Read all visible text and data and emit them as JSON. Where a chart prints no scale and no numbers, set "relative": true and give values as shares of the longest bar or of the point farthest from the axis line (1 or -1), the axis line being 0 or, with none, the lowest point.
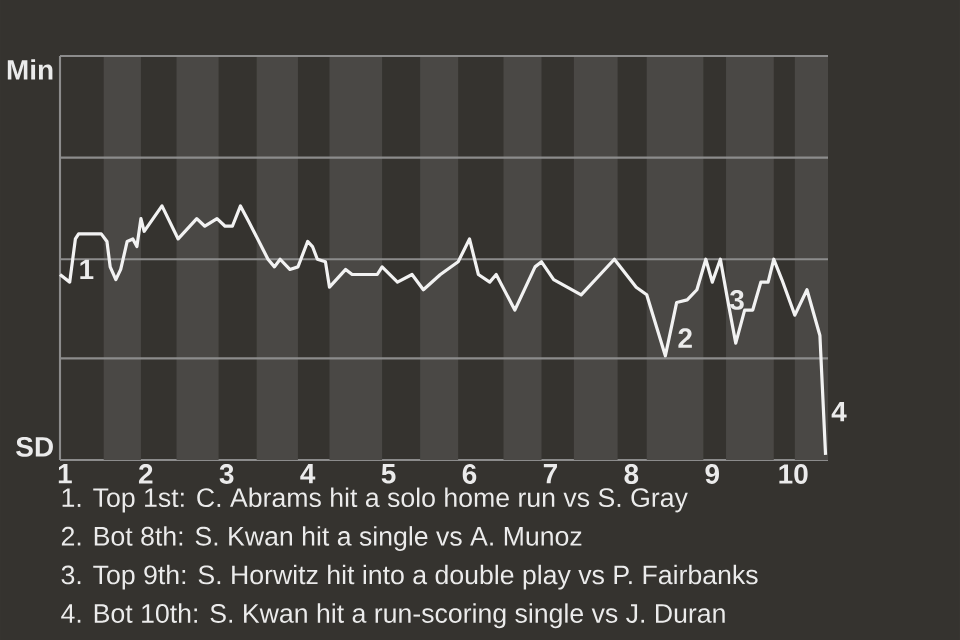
{
  "chart_data": {
    "type": "line",
    "relative": true,
    "x": [
      0.94,
      1.06,
      1.13,
      1.17,
      1.45,
      1.52,
      1.56,
      1.63,
      1.69,
      1.77,
      1.84,
      1.89,
      1.94,
      1.98,
      2.2,
      2.4,
      2.63,
      2.73,
      2.88,
      2.98,
      3.07,
      3.17,
      3.27,
      3.51,
      3.59,
      3.66,
      3.78,
      3.88,
      4.0,
      4.06,
      4.12,
      4.22,
      4.27,
      4.47,
      4.55,
      4.86,
      4.92,
      5.11,
      5.29,
      5.43,
      5.64,
      5.86,
      6.0,
      6.11,
      6.25,
      6.33,
      6.56,
      6.81,
      6.89,
      7.04,
      7.38,
      7.79,
      8.06,
      8.19,
      8.42,
      8.56,
      8.69,
      8.81,
      8.92,
      9.0,
      9.1,
      9.19,
      9.29,
      9.4,
      9.5,
      9.6,
      9.69,
      9.76,
      9.86,
      10.02,
      10.17,
      10.33,
      10.4
    ],
    "values": [
      0.73,
      0.7,
      0.87,
      0.89,
      0.89,
      0.86,
      0.76,
      0.71,
      0.75,
      0.86,
      0.87,
      0.84,
      0.95,
      0.9,
      1,
      0.87,
      0.95,
      0.92,
      0.95,
      0.92,
      0.92,
      1,
      0.94,
      0.79,
      0.76,
      0.79,
      0.75,
      0.76,
      0.86,
      0.84,
      0.79,
      0.78,
      0.68,
      0.75,
      0.73,
      0.73,
      0.76,
      0.7,
      0.73,
      0.67,
      0.73,
      0.78,
      0.87,
      0.73,
      0.7,
      0.73,
      0.59,
      0.76,
      0.78,
      0.71,
      0.65,
      0.79,
      0.68,
      0.65,
      0.41,
      0.62,
      0.63,
      0.67,
      0.79,
      0.7,
      0.79,
      0.63,
      0.46,
      0.59,
      0.59,
      0.7,
      0.7,
      0.79,
      0.71,
      0.57,
      0.67,
      0.49,
      0.02
    ],
    "color": "#f2f2f2",
    "marker": "none",
    "line_style": "solid",
    "legend": false,
    "ref_lines": [
      {
        "axis": "y",
        "value": 0.4,
        "color": "#8c8c8c"
      },
      {
        "axis": "y",
        "value": 0.79,
        "color": "#8c8c8c"
      },
      {
        "axis": "y",
        "value": 1.19,
        "color": "#8c8c8c"
      },
      {
        "axis": "y",
        "value": 1.59,
        "color": "#8c8c8c"
      }
    ],
    "xlim": [
      0.94,
      10.43
    ],
    "xticks": [
      1,
      2,
      3,
      4,
      5,
      6,
      7,
      8,
      9,
      10
    ],
    "bands": [
      {
        "axis": "x",
        "from": 1.48,
        "to": 1.94,
        "color": "#4a4845"
      },
      {
        "axis": "x",
        "from": 2.38,
        "to": 2.9,
        "color": "#4a4845"
      },
      {
        "axis": "x",
        "from": 3.37,
        "to": 3.88,
        "color": "#4a4845"
      },
      {
        "axis": "x",
        "from": 4.27,
        "to": 4.92,
        "color": "#4a4845"
      },
      {
        "axis": "x",
        "from": 5.39,
        "to": 5.86,
        "color": "#4a4845"
      },
      {
        "axis": "x",
        "from": 6.42,
        "to": 6.89,
        "color": "#4a4845"
      },
      {
        "axis": "x",
        "from": 7.29,
        "to": 7.83,
        "color": "#4a4845"
      },
      {
        "axis": "x",
        "from": 8.19,
        "to": 8.89,
        "color": "#4a4845"
      },
      {
        "axis": "x",
        "from": 9.17,
        "to": 9.76,
        "color": "#4a4845"
      },
      {
        "axis": "x",
        "from": 10.02,
        "to": 10.43,
        "color": "#4a4845"
      }
    ],
    "annotations": [
      "Min",
      "SD",
      {
        "text": "1",
        "x": 1.13,
        "y": 0.75
      },
      {
        "text": "2",
        "x": 8.53,
        "y": 0.48
      },
      {
        "text": "3",
        "x": 9.17,
        "y": 0.63
      },
      {
        "text": "4",
        "x": 10.43,
        "y": 0.19
      },
      "1. Top 1st: C. Abrams hit a solo home run vs S. Gray",
      "2. Bot 8th: S. Kwan hit a single vs A. Munoz",
      "3. Top 9th: S. Horwitz hit into a double play vs P. Fairbanks",
      "4. Bot 10th: S. Kwan hit a run-scoring single vs J. Duran"
    ]
  }
}
